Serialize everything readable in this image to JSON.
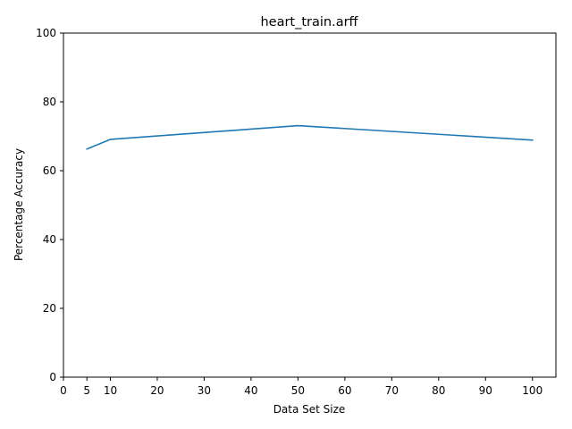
{
  "chart_data": {
    "type": "line",
    "title": "heart_train.arff",
    "xlabel": "Data Set Size",
    "ylabel": "Percentage Accuracy",
    "xlim": [
      0,
      105
    ],
    "ylim": [
      0,
      100
    ],
    "xticks": [
      0,
      5,
      10,
      20,
      30,
      40,
      50,
      60,
      70,
      80,
      90,
      100
    ],
    "yticks": [
      0,
      20,
      40,
      60,
      80,
      100
    ],
    "grid": false,
    "series": [
      {
        "color": "#1f77b4",
        "x": [
          5,
          10,
          50,
          100
        ],
        "y": [
          66.3,
          69.1,
          73.1,
          68.9
        ]
      }
    ]
  }
}
